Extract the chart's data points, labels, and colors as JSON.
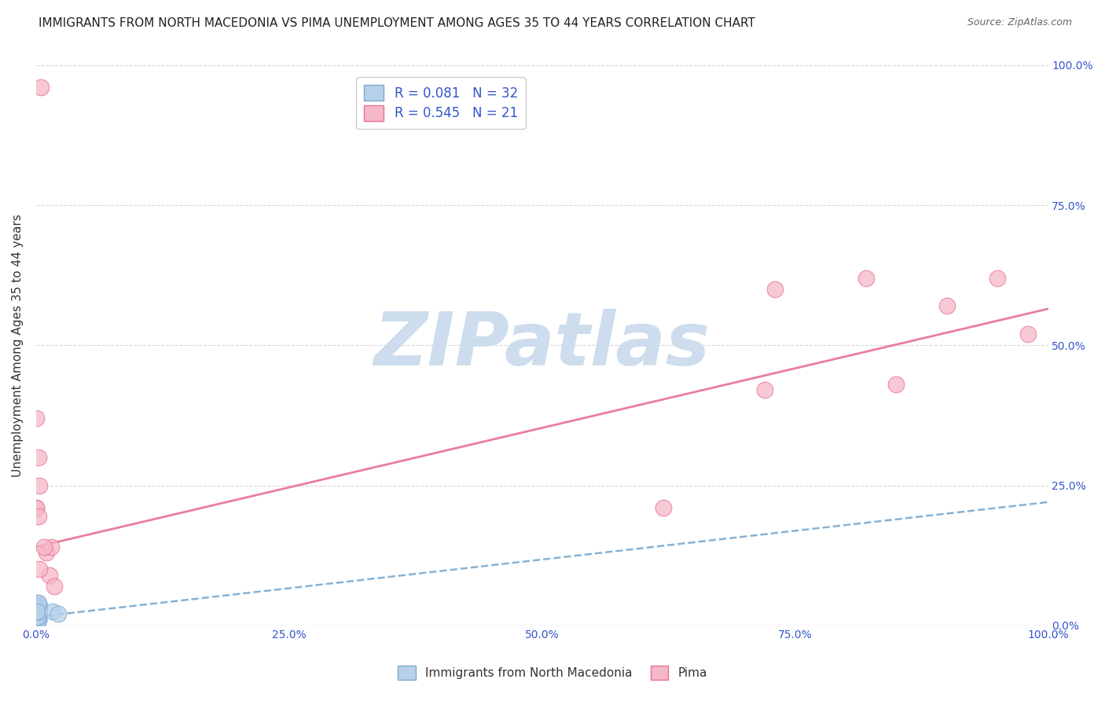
{
  "title": "IMMIGRANTS FROM NORTH MACEDONIA VS PIMA UNEMPLOYMENT AMONG AGES 35 TO 44 YEARS CORRELATION CHART",
  "source": "Source: ZipAtlas.com",
  "ylabel": "Unemployment Among Ages 35 to 44 years",
  "xlim": [
    0,
    1.0
  ],
  "ylim": [
    0,
    1.0
  ],
  "xtick_positions": [
    0.0,
    0.25,
    0.5,
    0.75,
    1.0
  ],
  "xtick_labels": [
    "0.0%",
    "25.0%",
    "50.0%",
    "75.0%",
    "100.0%"
  ],
  "ytick_positions": [
    0.0,
    0.25,
    0.5,
    0.75,
    1.0
  ],
  "ytick_labels_right": [
    "0.0%",
    "25.0%",
    "50.0%",
    "75.0%",
    "100.0%"
  ],
  "blue_R": "0.081",
  "blue_N": "32",
  "pink_R": "0.545",
  "pink_N": "21",
  "blue_fill_color": "#b8d0ea",
  "pink_fill_color": "#f5b8c8",
  "blue_edge_color": "#7aaad0",
  "pink_edge_color": "#e87090",
  "blue_trend_color": "#7aaad0",
  "pink_trend_color": "#e87090",
  "legend_text_color": "#3355cc",
  "axis_tick_color": "#3355cc",
  "background_color": "#ffffff",
  "watermark_color": "#cddded",
  "title_fontsize": 11,
  "source_fontsize": 9,
  "ylabel_fontsize": 11,
  "legend_fontsize": 12,
  "tick_fontsize": 10,
  "blue_scatter_x": [
    0.002,
    0.003,
    0.001,
    0.002,
    0.003,
    0.002,
    0.001,
    0.001,
    0.002,
    0.003,
    0.002,
    0.001,
    0.002,
    0.001,
    0.002,
    0.001,
    0.0,
    0.001,
    0.002,
    0.001,
    0.002,
    0.001,
    0.003,
    0.002,
    0.001,
    0.002,
    0.001,
    0.003,
    0.002,
    0.001,
    0.016,
    0.022
  ],
  "blue_scatter_y": [
    0.025,
    0.03,
    0.02,
    0.025,
    0.03,
    0.02,
    0.025,
    0.04,
    0.01,
    0.02,
    0.03,
    0.035,
    0.025,
    0.02,
    0.01,
    0.03,
    0.02,
    0.035,
    0.025,
    0.015,
    0.01,
    0.025,
    0.035,
    0.015,
    0.025,
    0.03,
    0.015,
    0.025,
    0.04,
    0.025,
    0.025,
    0.02
  ],
  "pink_scatter_x": [
    0.002,
    0.0,
    0.0,
    0.003,
    0.01,
    0.013,
    0.015,
    0.018,
    0.005,
    0.008,
    0.003,
    0.0,
    0.62,
    0.72,
    0.73,
    0.82,
    0.85,
    0.9,
    0.95,
    0.98,
    0.002
  ],
  "pink_scatter_y": [
    0.3,
    0.37,
    0.21,
    0.25,
    0.13,
    0.09,
    0.14,
    0.07,
    0.96,
    0.14,
    0.1,
    0.21,
    0.21,
    0.42,
    0.6,
    0.62,
    0.43,
    0.57,
    0.62,
    0.52,
    0.195
  ],
  "blue_trend_x": [
    0.0,
    1.0
  ],
  "blue_trend_y": [
    0.015,
    0.22
  ],
  "pink_trend_x": [
    0.0,
    1.0
  ],
  "pink_trend_y": [
    0.14,
    0.565
  ]
}
